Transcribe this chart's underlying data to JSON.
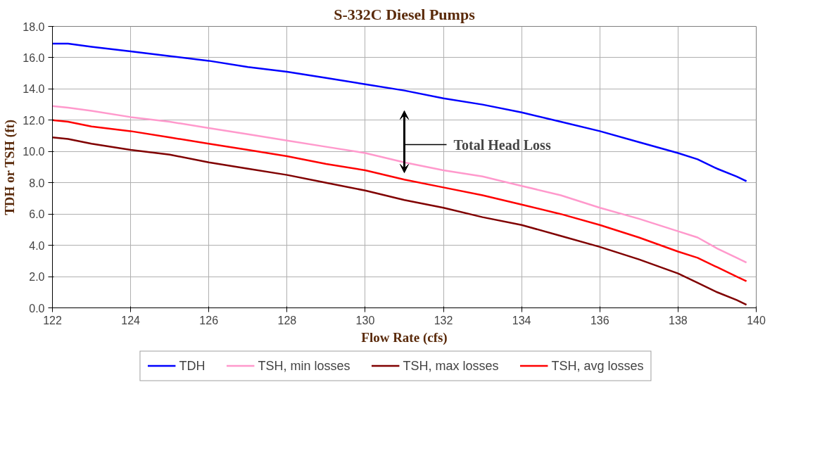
{
  "chart_data": {
    "type": "line",
    "title": "S-332C Diesel Pumps",
    "xlabel": "Flow Rate (cfs)",
    "ylabel": "TDH or TSH (ft)",
    "x": [
      122,
      122.4,
      123,
      124,
      125,
      126,
      127,
      128,
      129,
      130,
      131,
      132,
      133,
      134,
      135,
      136,
      137,
      138,
      138.5,
      139,
      139.5,
      139.75
    ],
    "series": [
      {
        "name": "TDH",
        "color": "#0000ff",
        "values": [
          16.9,
          16.9,
          16.7,
          16.4,
          16.1,
          15.8,
          15.4,
          15.1,
          14.7,
          14.3,
          13.9,
          13.4,
          13.0,
          12.5,
          11.9,
          11.3,
          10.6,
          9.9,
          9.5,
          8.9,
          8.4,
          8.1
        ]
      },
      {
        "name": "TSH, min losses",
        "color": "#ff99cc",
        "values": [
          12.9,
          12.8,
          12.6,
          12.2,
          11.9,
          11.5,
          11.1,
          10.7,
          10.3,
          9.9,
          9.3,
          8.8,
          8.4,
          7.8,
          7.2,
          6.4,
          5.7,
          4.9,
          4.5,
          3.8,
          3.2,
          2.9
        ]
      },
      {
        "name": "TSH, max losses",
        "color": "#800000",
        "values": [
          10.9,
          10.8,
          10.5,
          10.1,
          9.8,
          9.3,
          8.9,
          8.5,
          8.0,
          7.5,
          6.9,
          6.4,
          5.8,
          5.3,
          4.6,
          3.9,
          3.1,
          2.2,
          1.6,
          1.0,
          0.5,
          0.2
        ]
      },
      {
        "name": "TSH, avg losses",
        "color": "#ff0000",
        "values": [
          12.0,
          11.9,
          11.6,
          11.3,
          10.9,
          10.5,
          10.1,
          9.7,
          9.2,
          8.8,
          8.2,
          7.7,
          7.2,
          6.6,
          6.0,
          5.3,
          4.5,
          3.6,
          3.2,
          2.6,
          2.0,
          1.7
        ]
      }
    ],
    "xlim": [
      122,
      140
    ],
    "xticks": [
      122,
      124,
      126,
      128,
      130,
      132,
      134,
      136,
      138,
      140
    ],
    "ylim": [
      0,
      18
    ],
    "yticks": [
      {
        "value": 0,
        "label": "0.0"
      },
      {
        "value": 2,
        "label": "2.0"
      },
      {
        "value": 4,
        "label": "4.0"
      },
      {
        "value": 6,
        "label": "6.0"
      },
      {
        "value": 8,
        "label": "8.0"
      },
      {
        "value": 10,
        "label": "10.0"
      },
      {
        "value": 12,
        "label": "12.0"
      },
      {
        "value": 14,
        "label": "14.0"
      },
      {
        "value": 16,
        "label": "16.0"
      },
      {
        "value": 18,
        "label": "18.0"
      }
    ],
    "annotations": [
      "Total Head Loss"
    ],
    "grid": true,
    "legend": "bottom",
    "line_style": "solid",
    "marker": "none"
  }
}
